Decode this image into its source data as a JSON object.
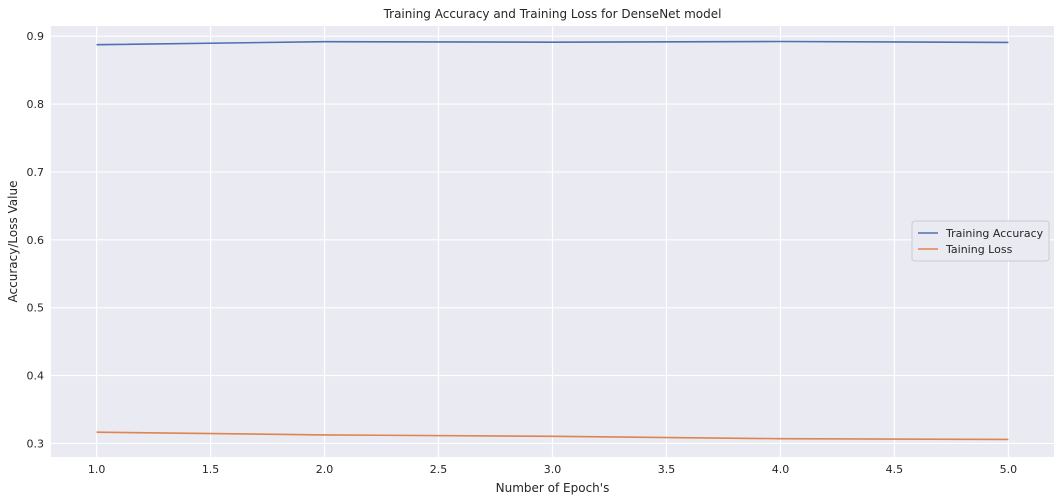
{
  "chart_data": {
    "type": "line",
    "title": "Training Accuracy and Training Loss for DenseNet model",
    "xlabel": "Number of Epoch's",
    "ylabel": "Accuracy/Loss Value",
    "xlim": [
      0.8,
      5.2
    ],
    "ylim": [
      0.28,
      0.915
    ],
    "xticks": [
      1.0,
      1.5,
      2.0,
      2.5,
      3.0,
      3.5,
      4.0,
      4.5,
      5.0
    ],
    "xtick_labels": [
      "1.0",
      "1.5",
      "2.0",
      "2.5",
      "3.0",
      "3.5",
      "4.0",
      "4.5",
      "5.0"
    ],
    "yticks": [
      0.3,
      0.4,
      0.5,
      0.6,
      0.7,
      0.8,
      0.9
    ],
    "ytick_labels": [
      "0.3",
      "0.4",
      "0.5",
      "0.6",
      "0.7",
      "0.8",
      "0.9"
    ],
    "grid": true,
    "legend_position": "center-right",
    "x": [
      1,
      2,
      3,
      4,
      5
    ],
    "series": [
      {
        "name": "Training Accuracy",
        "color": "#4c72b0",
        "values": [
          0.8875,
          0.8918,
          0.8912,
          0.8922,
          0.8908
        ]
      },
      {
        "name": "Taining Loss",
        "color": "#dd8452",
        "values": [
          0.3165,
          0.3125,
          0.3105,
          0.307,
          0.306
        ]
      }
    ],
    "colors": {
      "plot_background": "#eaeaf2",
      "grid": "#ffffff"
    }
  }
}
